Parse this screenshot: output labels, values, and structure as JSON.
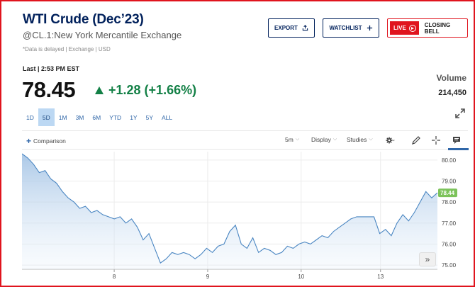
{
  "header": {
    "title": "WTI Crude (Dec’23)",
    "subtitle": "@CL.1:New York Mercantile Exchange",
    "delay_note": "*Data is delayed | Exchange | USD"
  },
  "actions": {
    "export_label": "EXPORT",
    "watchlist_label": "WATCHLIST",
    "live_label": "LIVE",
    "closing_bell_label": "CLOSING BELL"
  },
  "quote": {
    "last_time": "Last | 2:53 PM EST",
    "price": "78.45",
    "change": "+1.28 (+1.66%)",
    "volume_label": "Volume",
    "volume_value": "214,450"
  },
  "ranges": [
    {
      "label": "1D",
      "active": false
    },
    {
      "label": "5D",
      "active": true
    },
    {
      "label": "1M",
      "active": false
    },
    {
      "label": "3M",
      "active": false
    },
    {
      "label": "6M",
      "active": false
    },
    {
      "label": "YTD",
      "active": false
    },
    {
      "label": "1Y",
      "active": false
    },
    {
      "label": "5Y",
      "active": false
    },
    {
      "label": "ALL",
      "active": false
    }
  ],
  "toolbar": {
    "comparison_label": "Comparison",
    "interval_label": "5m",
    "display_label": "Display",
    "studies_label": "Studies"
  },
  "colors": {
    "brand_navy": "#00205b",
    "live_red": "#e0141e",
    "positive_green": "#138046",
    "line_blue": "#4a86c2",
    "last_price_badge": "#7cc35a"
  },
  "chart_data": {
    "type": "area",
    "x_ticks": [
      "8",
      "9",
      "10",
      "13"
    ],
    "y_ticks": [
      75.0,
      76.0,
      77.0,
      78.0,
      79.0,
      80.0
    ],
    "ylim": [
      74.8,
      80.4
    ],
    "last_value_label": "78.44",
    "grid": true,
    "series": [
      {
        "values": [
          80.3,
          80.1,
          79.8,
          79.4,
          79.5,
          79.1,
          78.9,
          78.5,
          78.2,
          78.0,
          77.7,
          77.8,
          77.5,
          77.6,
          77.4,
          77.3,
          77.2,
          77.3,
          77.0,
          77.2,
          76.8,
          76.2,
          76.5,
          75.8,
          75.1,
          75.3,
          75.6,
          75.5,
          75.6,
          75.5,
          75.3,
          75.5,
          75.8,
          75.6,
          75.9,
          76.0,
          76.6,
          76.9,
          76.0,
          75.8,
          76.3,
          75.6,
          75.8,
          75.7,
          75.5,
          75.6,
          75.9,
          75.8,
          76.0,
          76.1,
          76.0,
          76.2,
          76.4,
          76.3,
          76.6,
          76.8,
          77.0,
          77.2,
          77.3,
          77.3,
          77.3,
          77.3,
          76.5,
          76.7,
          76.4,
          77.0,
          77.4,
          77.1,
          77.5,
          78.0,
          78.5,
          78.2,
          78.44
        ]
      }
    ]
  }
}
